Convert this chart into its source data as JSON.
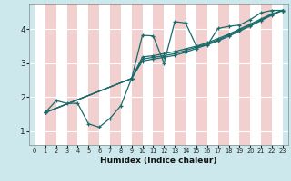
{
  "xlabel": "Humidex (Indice chaleur)",
  "bg_color": "#cce8ec",
  "grid_color_major": "#ffffff",
  "grid_color_minor": "#f0c8c8",
  "line_color": "#1a6b6b",
  "xlim": [
    -0.5,
    23.5
  ],
  "ylim": [
    0.6,
    4.75
  ],
  "xticks": [
    0,
    1,
    2,
    3,
    4,
    5,
    6,
    7,
    8,
    9,
    10,
    11,
    12,
    13,
    14,
    15,
    16,
    17,
    18,
    19,
    20,
    21,
    22,
    23
  ],
  "yticks": [
    1,
    2,
    3,
    4
  ],
  "series1_x": [
    1,
    2,
    3,
    4,
    5,
    6,
    7,
    8,
    9,
    10,
    11,
    12,
    13,
    14,
    15,
    16,
    17,
    18,
    19,
    20,
    21,
    22,
    23
  ],
  "series1_y": [
    1.55,
    1.9,
    1.82,
    1.82,
    1.22,
    1.12,
    1.38,
    1.75,
    2.55,
    3.82,
    3.8,
    3.0,
    4.22,
    4.18,
    3.5,
    3.52,
    4.02,
    4.08,
    4.12,
    4.28,
    4.48,
    4.55,
    4.55
  ],
  "series2_x": [
    1,
    9,
    10,
    11,
    12,
    13,
    14,
    15,
    16,
    17,
    18,
    19,
    20,
    21,
    22,
    23
  ],
  "series2_y": [
    1.55,
    2.55,
    3.18,
    3.22,
    3.28,
    3.34,
    3.42,
    3.5,
    3.6,
    3.72,
    3.85,
    4.0,
    4.15,
    4.3,
    4.45,
    4.55
  ],
  "series3_x": [
    1,
    9,
    10,
    11,
    12,
    13,
    14,
    15,
    16,
    17,
    18,
    19,
    20,
    21,
    22,
    23
  ],
  "series3_y": [
    1.55,
    2.55,
    3.12,
    3.17,
    3.22,
    3.28,
    3.37,
    3.47,
    3.57,
    3.68,
    3.82,
    3.97,
    4.12,
    4.27,
    4.43,
    4.55
  ],
  "series4_x": [
    1,
    9,
    10,
    11,
    12,
    13,
    14,
    15,
    16,
    17,
    18,
    19,
    20,
    21,
    22,
    23
  ],
  "series4_y": [
    1.55,
    2.55,
    3.06,
    3.12,
    3.17,
    3.23,
    3.32,
    3.43,
    3.54,
    3.65,
    3.79,
    3.94,
    4.09,
    4.25,
    4.41,
    4.55
  ]
}
